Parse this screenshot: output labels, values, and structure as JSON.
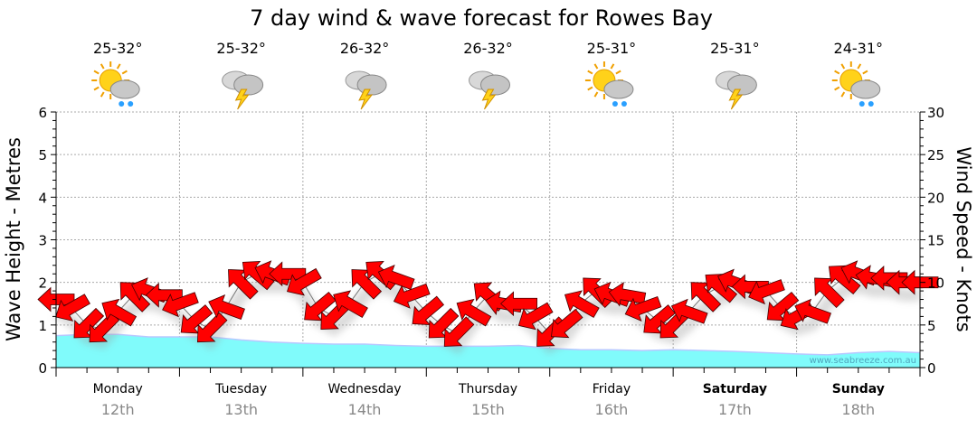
{
  "chart_data": {
    "type": "line",
    "title": "7 day wind & wave forecast for Rowes Bay",
    "ylabel_left": "Wave Height - Metres",
    "ylabel_right": "Wind Speed - Knots",
    "ylim_left": [
      0,
      6
    ],
    "ylim_right": [
      0,
      30
    ],
    "yticks_left": [
      "0",
      "1",
      "2",
      "3",
      "4",
      "5",
      "6"
    ],
    "yticks_right": [
      "0",
      "5",
      "10",
      "15",
      "20",
      "25",
      "30"
    ],
    "grid": true,
    "watermark": "www.seabreeze.com.au",
    "days": [
      {
        "name": "Monday",
        "date": "12th",
        "temp": "25-32°",
        "icon": "sun-cloud-rain",
        "bold": false
      },
      {
        "name": "Tuesday",
        "date": "13th",
        "temp": "25-32°",
        "icon": "cloud-lightning",
        "bold": false
      },
      {
        "name": "Wednesday",
        "date": "14th",
        "temp": "26-32°",
        "icon": "cloud-lightning",
        "bold": false
      },
      {
        "name": "Thursday",
        "date": "15th",
        "temp": "26-32°",
        "icon": "cloud-lightning",
        "bold": false
      },
      {
        "name": "Friday",
        "date": "16th",
        "temp": "25-31°",
        "icon": "sun-cloud-rain",
        "bold": false
      },
      {
        "name": "Saturday",
        "date": "17th",
        "temp": "25-31°",
        "icon": "cloud-lightning",
        "bold": true
      },
      {
        "name": "Sunday",
        "date": "18th",
        "temp": "24-31°",
        "icon": "sun-cloud-rain",
        "bold": true
      }
    ],
    "wave_series": {
      "name": "Wave Height (m)",
      "hours": [
        0,
        6,
        12,
        18,
        24,
        30,
        36,
        42,
        48,
        54,
        60,
        66,
        72,
        78,
        84,
        90,
        96,
        102,
        108,
        114,
        120,
        126,
        132,
        138,
        144,
        150,
        156,
        162,
        168
      ],
      "values": [
        0.75,
        0.78,
        0.78,
        0.72,
        0.72,
        0.72,
        0.65,
        0.6,
        0.57,
        0.55,
        0.55,
        0.52,
        0.5,
        0.5,
        0.5,
        0.52,
        0.45,
        0.42,
        0.42,
        0.4,
        0.42,
        0.4,
        0.38,
        0.35,
        0.32,
        0.3,
        0.35,
        0.38,
        0.35
      ]
    },
    "wind_series": {
      "name": "Wind Speed (knots)",
      "hours": [
        0,
        3,
        6,
        9,
        12,
        15,
        18,
        21,
        24,
        27,
        30,
        33,
        36,
        39,
        42,
        45,
        48,
        51,
        54,
        57,
        60,
        63,
        66,
        69,
        72,
        75,
        78,
        81,
        84,
        87,
        90,
        93,
        96,
        99,
        102,
        105,
        108,
        111,
        114,
        117,
        120,
        123,
        126,
        129,
        132,
        135,
        138,
        141,
        144,
        147,
        150,
        153,
        156,
        159,
        162,
        165,
        168
      ],
      "speeds": [
        8,
        7,
        5,
        4.5,
        6.5,
        8.5,
        9,
        8.5,
        7.5,
        5.5,
        4.5,
        7,
        10,
        11,
        11,
        11,
        10,
        7,
        6,
        7.5,
        10,
        11,
        10.5,
        8.5,
        6.5,
        5,
        4,
        6.5,
        8.5,
        7.5,
        7.5,
        6,
        4,
        5,
        7.5,
        9,
        8.5,
        8.5,
        7,
        5.5,
        5,
        6.5,
        8.5,
        9.5,
        10,
        9.5,
        9,
        7,
        6,
        6.5,
        9,
        10.5,
        11,
        10.5,
        10.5,
        10,
        10
      ],
      "direction_from_deg": [
        90,
        60,
        45,
        45,
        120,
        135,
        110,
        90,
        70,
        50,
        45,
        110,
        135,
        130,
        110,
        90,
        60,
        50,
        45,
        120,
        135,
        130,
        110,
        70,
        50,
        45,
        45,
        120,
        130,
        100,
        90,
        60,
        45,
        50,
        120,
        135,
        110,
        100,
        70,
        50,
        45,
        110,
        135,
        130,
        110,
        90,
        70,
        50,
        60,
        110,
        135,
        130,
        110,
        100,
        90,
        90,
        90
      ]
    }
  }
}
